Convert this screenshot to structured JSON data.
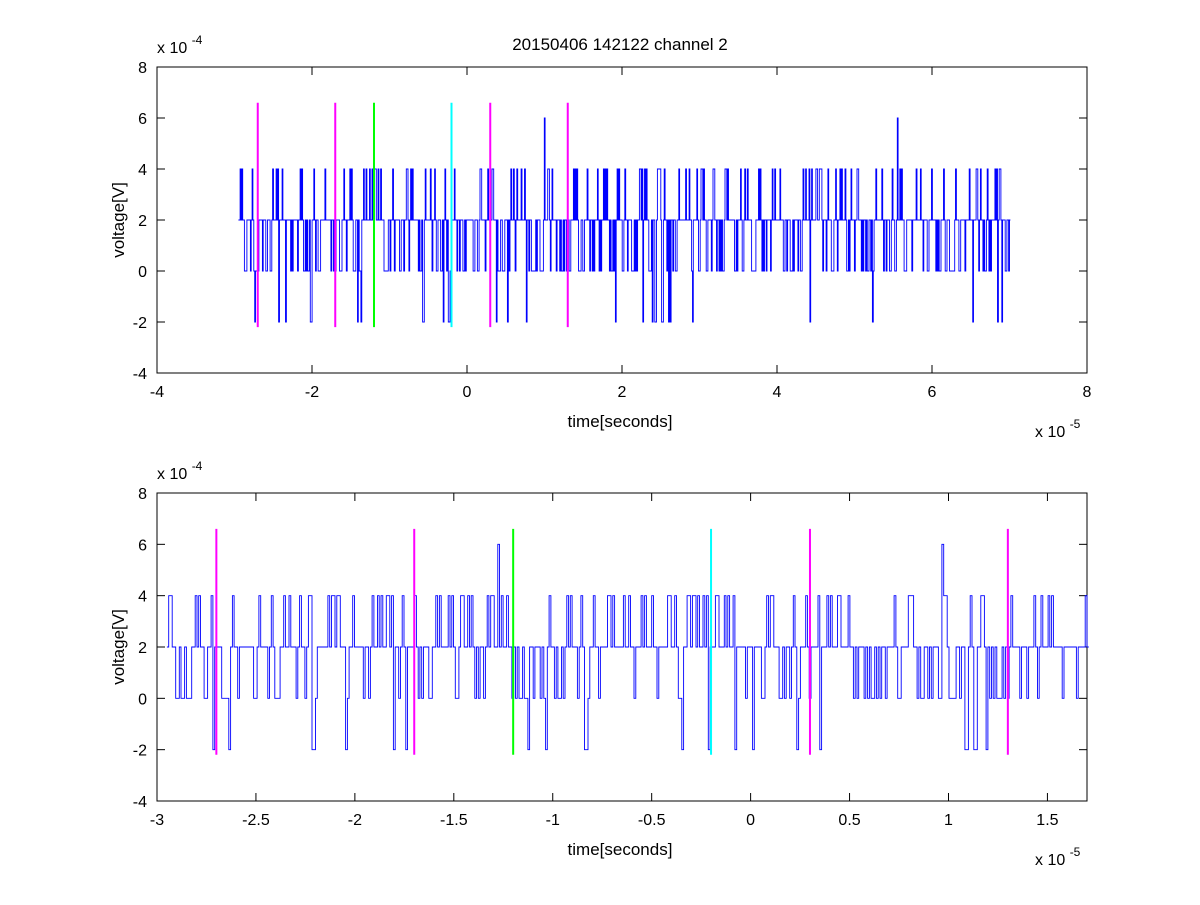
{
  "figure": {
    "title": "20150406 142122 channel 2"
  },
  "chart_data": [
    {
      "type": "line",
      "title": "20150406 142122 channel 2",
      "xlabel": "time[seconds]",
      "ylabel": "voltage[V]",
      "xlim": [
        -4,
        8
      ],
      "ylim": [
        -4,
        8
      ],
      "xticks": [
        -4,
        -2,
        0,
        2,
        4,
        6,
        8
      ],
      "yticks": [
        -4,
        -2,
        0,
        2,
        4,
        6,
        8
      ],
      "x_exponent_label": "x 10",
      "x_exponent": "-5",
      "y_exponent_label": "x 10",
      "y_exponent": "-4",
      "grid": false,
      "trace": {
        "color": "#0000ff",
        "x_start": -2.95,
        "x_end": 7.0,
        "levels": [
          -2,
          0,
          2,
          4,
          6
        ],
        "peaks_high": [
          {
            "x": 1.0,
            "y": 6
          },
          {
            "x": 5.55,
            "y": 6
          }
        ]
      },
      "markers": [
        {
          "x": -2.7,
          "y_range": [
            -2.2,
            6.6
          ],
          "color": "#ff00ff"
        },
        {
          "x": -1.7,
          "y_range": [
            -2.2,
            6.6
          ],
          "color": "#ff00ff"
        },
        {
          "x": -1.2,
          "y_range": [
            -2.2,
            6.6
          ],
          "color": "#00ff00"
        },
        {
          "x": -0.2,
          "y_range": [
            -2.2,
            6.6
          ],
          "color": "#00ffff"
        },
        {
          "x": 0.3,
          "y_range": [
            -2.2,
            6.6
          ],
          "color": "#ff00ff"
        },
        {
          "x": 1.3,
          "y_range": [
            -2.2,
            6.6
          ],
          "color": "#ff00ff"
        }
      ]
    },
    {
      "type": "line",
      "xlabel": "time[seconds]",
      "ylabel": "voltage[V]",
      "xlim": [
        -3.0,
        1.7
      ],
      "ylim": [
        -4,
        8
      ],
      "xticks": [
        -3,
        -2.5,
        -2,
        -1.5,
        -1,
        -0.5,
        0,
        0.5,
        1,
        1.5
      ],
      "yticks": [
        -4,
        -2,
        0,
        2,
        4,
        6,
        8
      ],
      "x_exponent_label": "x 10",
      "x_exponent": "-5",
      "y_exponent_label": "x 10",
      "y_exponent": "-4",
      "grid": false,
      "trace": {
        "color": "#0000ff",
        "x_start": -2.95,
        "x_end": 1.7,
        "levels": [
          -2,
          0,
          2,
          4,
          6
        ],
        "peaks_high": [
          {
            "x": -1.28,
            "y": 6
          },
          {
            "x": 0.97,
            "y": 6
          }
        ]
      },
      "markers": [
        {
          "x": -2.7,
          "y_range": [
            -2.2,
            6.6
          ],
          "color": "#ff00ff"
        },
        {
          "x": -1.7,
          "y_range": [
            -2.2,
            6.6
          ],
          "color": "#ff00ff"
        },
        {
          "x": -1.2,
          "y_range": [
            -2.2,
            6.6
          ],
          "color": "#00ff00"
        },
        {
          "x": -0.2,
          "y_range": [
            -2.2,
            6.6
          ],
          "color": "#00ffff"
        },
        {
          "x": 0.3,
          "y_range": [
            -2.2,
            6.6
          ],
          "color": "#ff00ff"
        },
        {
          "x": 1.3,
          "y_range": [
            -2.2,
            6.6
          ],
          "color": "#ff00ff"
        }
      ]
    }
  ]
}
